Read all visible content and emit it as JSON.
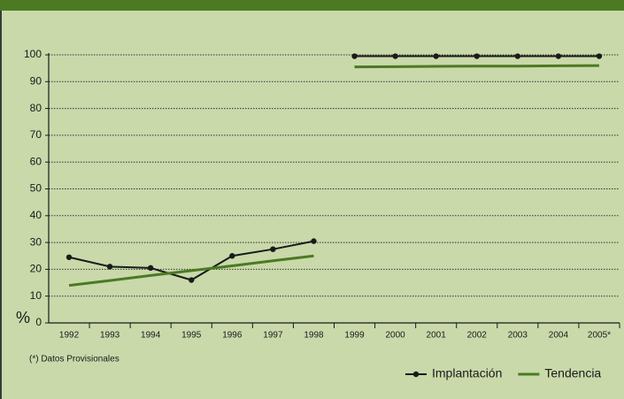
{
  "chart_data": {
    "type": "line",
    "y_label": "%",
    "footnote": "(*) Datos Provisionales",
    "categories": [
      "1992",
      "1993",
      "1994",
      "1995",
      "1996",
      "1997",
      "1998",
      "1999",
      "2000",
      "2001",
      "2002",
      "2003",
      "2004",
      "2005*"
    ],
    "break_before_index": 7,
    "series": [
      {
        "name": "Implantación",
        "color": "#1a1a1a",
        "markers": true,
        "values": [
          24.5,
          21,
          20.5,
          16,
          25,
          27.5,
          30.5,
          99.5,
          99.5,
          99.5,
          99.5,
          99.5,
          99.5,
          99.5
        ]
      },
      {
        "name": "Tendencia",
        "color": "#4b7a23",
        "markers": false,
        "values": [
          14,
          15.8,
          17.7,
          19.5,
          21.3,
          23.2,
          25,
          95.5,
          95.6,
          95.7,
          95.8,
          95.8,
          95.9,
          96
        ]
      }
    ],
    "ylim": [
      0,
      100
    ],
    "yticks": [
      0,
      10,
      20,
      30,
      40,
      50,
      60,
      70,
      80,
      90,
      100
    ],
    "grid": true
  }
}
